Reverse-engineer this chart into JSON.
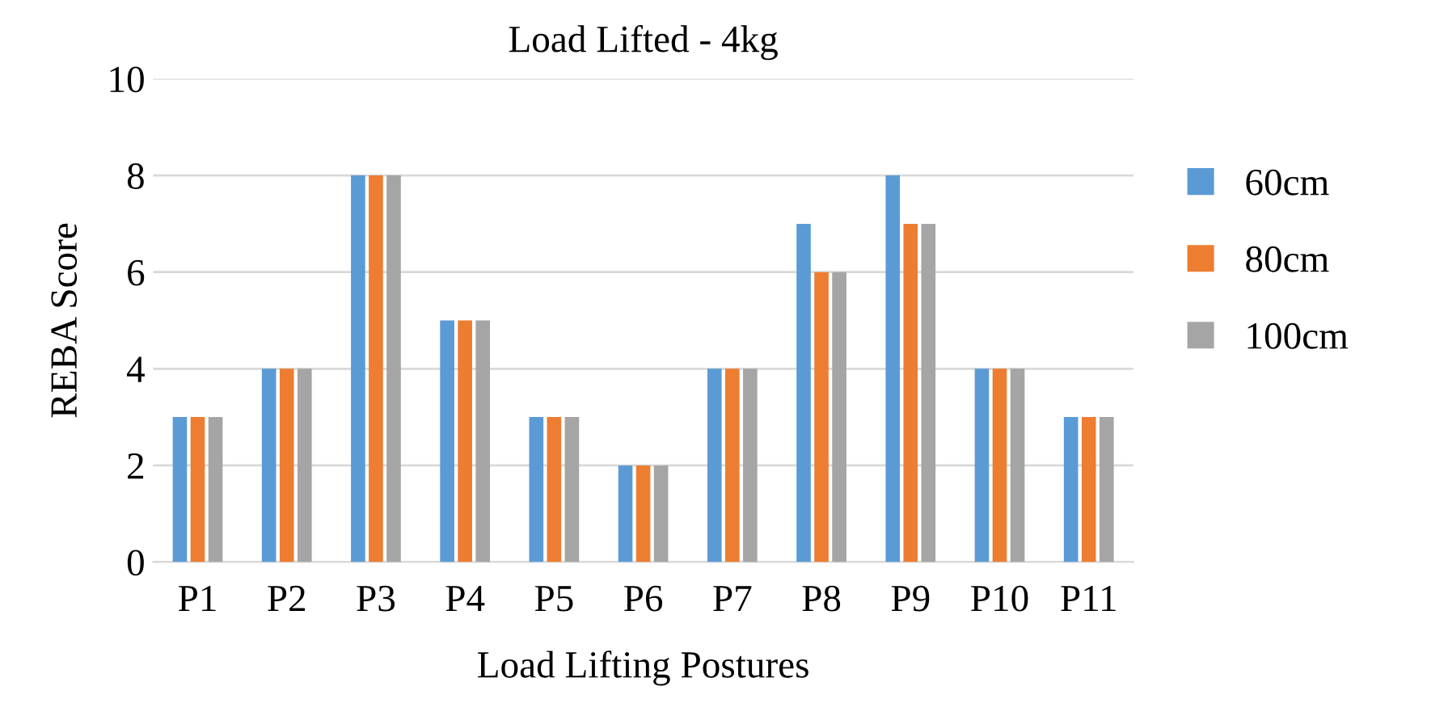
{
  "chart_data": {
    "type": "bar",
    "title": "Load Lifted - 4kg",
    "xlabel": "Load Lifting Postures",
    "ylabel": "REBA Score",
    "categories": [
      "P1",
      "P2",
      "P3",
      "P4",
      "P5",
      "P6",
      "P7",
      "P8",
      "P9",
      "P10",
      "P11"
    ],
    "series": [
      {
        "name": "60cm",
        "color": "#5b9bd5",
        "values": [
          3,
          4,
          8,
          5,
          3,
          2,
          4,
          7,
          8,
          4,
          3
        ]
      },
      {
        "name": "80cm",
        "color": "#ed7d31",
        "values": [
          3,
          4,
          8,
          5,
          3,
          2,
          4,
          6,
          7,
          4,
          3
        ]
      },
      {
        "name": "100cm",
        "color": "#a5a5a5",
        "values": [
          3,
          4,
          8,
          5,
          3,
          2,
          4,
          6,
          7,
          4,
          3
        ]
      }
    ],
    "ylim": [
      0,
      10
    ],
    "yticks": [
      0,
      2,
      4,
      6,
      8,
      10
    ],
    "grid": "y",
    "legend": "right"
  }
}
